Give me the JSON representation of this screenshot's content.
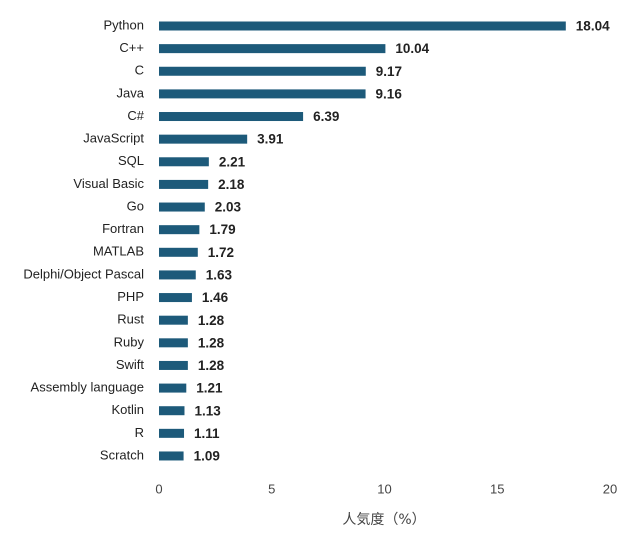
{
  "chart_data": {
    "type": "bar",
    "orientation": "horizontal",
    "categories": [
      "Python",
      "C++",
      "C",
      "Java",
      "C#",
      "JavaScript",
      "SQL",
      "Visual Basic",
      "Go",
      "Fortran",
      "MATLAB",
      "Delphi/Object Pascal",
      "PHP",
      "Rust",
      "Ruby",
      "Swift",
      "Assembly language",
      "Kotlin",
      "R",
      "Scratch"
    ],
    "values": [
      18.04,
      10.04,
      9.17,
      9.16,
      6.39,
      3.91,
      2.21,
      2.18,
      2.03,
      1.79,
      1.72,
      1.63,
      1.46,
      1.28,
      1.28,
      1.28,
      1.21,
      1.13,
      1.11,
      1.09
    ],
    "value_labels": [
      "18.04",
      "10.04",
      "9.17",
      "9.16",
      "6.39",
      "3.91",
      "2.21",
      "2.18",
      "2.03",
      "1.79",
      "1.72",
      "1.63",
      "1.46",
      "1.28",
      "1.28",
      "1.28",
      "1.21",
      "1.13",
      "1.11",
      "1.09"
    ],
    "x_ticks": [
      "0",
      "5",
      "10",
      "15",
      "20"
    ],
    "xlim": [
      0,
      20
    ],
    "title": "",
    "xlabel": "人気度（%）",
    "ylabel": "",
    "grid": false,
    "legend": "none",
    "bar_color": "#1d5a7a"
  }
}
